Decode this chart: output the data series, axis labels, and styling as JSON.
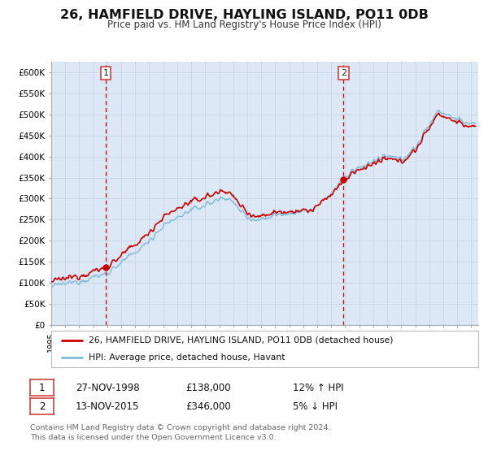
{
  "title": "26, HAMFIELD DRIVE, HAYLING ISLAND, PO11 0DB",
  "subtitle": "Price paid vs. HM Land Registry's House Price Index (HPI)",
  "ytick_values": [
    0,
    50000,
    100000,
    150000,
    200000,
    250000,
    300000,
    350000,
    400000,
    450000,
    500000,
    550000,
    600000
  ],
  "ylabel_ticks": [
    "£0",
    "£50K",
    "£100K",
    "£150K",
    "£200K",
    "£250K",
    "£300K",
    "£350K",
    "£400K",
    "£450K",
    "£500K",
    "£550K",
    "£600K"
  ],
  "xlim_start": 1995.0,
  "xlim_end": 2025.5,
  "ylim_min": 0,
  "ylim_max": 625000,
  "grid_color": "#c8d8e8",
  "plot_bg_color": "#dce8f5",
  "marker1_year": 1998.9,
  "marker1_value": 138000,
  "marker2_year": 2015.87,
  "marker2_value": 346000,
  "vline1_year": 1998.9,
  "vline2_year": 2015.87,
  "red_line_color": "#cc0000",
  "blue_line_color": "#80b8d8",
  "legend_label_red": "26, HAMFIELD DRIVE, HAYLING ISLAND, PO11 0DB (detached house)",
  "legend_label_blue": "HPI: Average price, detached house, Havant",
  "table_row1": [
    "1",
    "27-NOV-1998",
    "£138,000",
    "12% ↑ HPI"
  ],
  "table_row2": [
    "2",
    "13-NOV-2015",
    "£346,000",
    "5% ↓ HPI"
  ],
  "footer_text": "Contains HM Land Registry data © Crown copyright and database right 2024.\nThis data is licensed under the Open Government Licence v3.0."
}
